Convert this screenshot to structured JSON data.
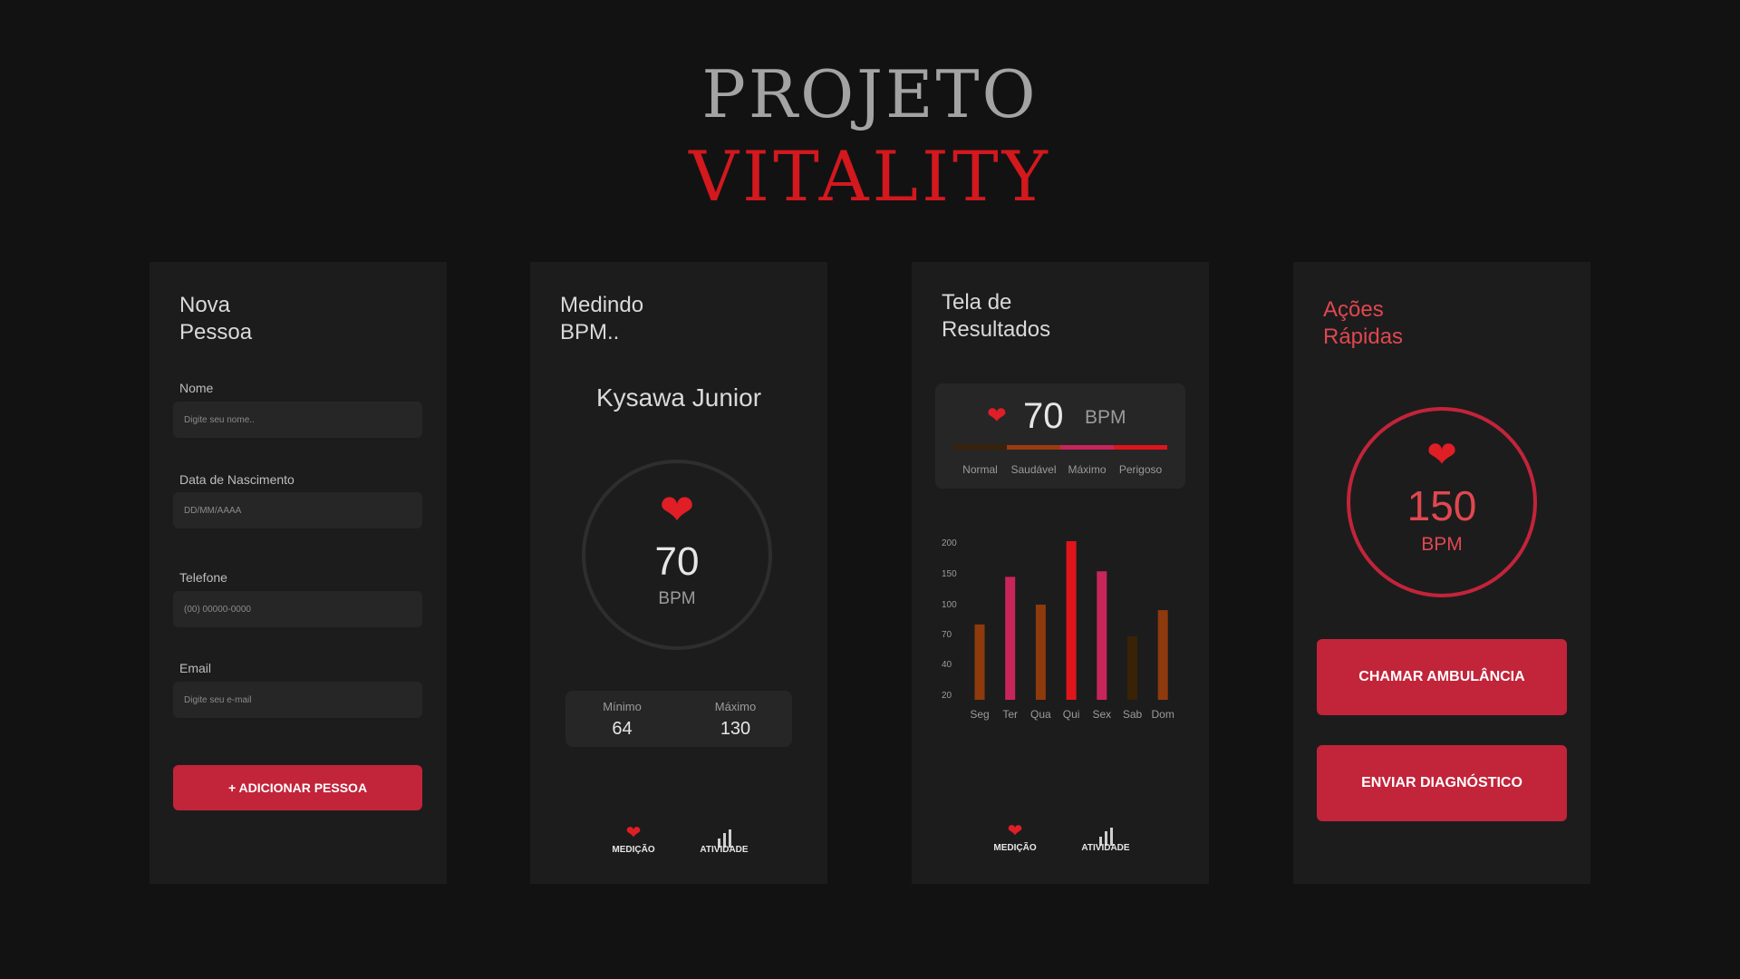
{
  "header": {
    "line1": "PROJETO",
    "line2": "VITALITY"
  },
  "colors": {
    "accent": "#c2243a",
    "heart": "#e01e26",
    "background": "#121213",
    "panel": "#1c1c1d"
  },
  "form_panel": {
    "title_line1": "Nova",
    "title_line2": "Pessoa",
    "fields": [
      {
        "label": "Nome",
        "placeholder": "Digite seu nome.."
      },
      {
        "label": "Data de Nascimento",
        "placeholder": "DD/MM/AAAA"
      },
      {
        "label": "Telefone",
        "placeholder": "(00) 00000-0000"
      },
      {
        "label": "Email",
        "placeholder": "Digite seu e-mail"
      }
    ],
    "submit_label": "+ ADICIONAR PESSOA"
  },
  "measure_panel": {
    "title_line1": "Medindo",
    "title_line2": "BPM..",
    "person": "Kysawa Junior",
    "heart_icon": "heart-icon",
    "bpm": "70",
    "unit": "BPM",
    "min_label": "Mínimo",
    "min_value": "64",
    "max_label": "Máximo",
    "max_value": "130"
  },
  "nav": [
    {
      "label": "MEDIÇÃO",
      "icon": "heart-icon"
    },
    {
      "label": "ATIVIDADE",
      "icon": "bar-chart-icon"
    }
  ],
  "results_panel": {
    "title_line1": "Tela de",
    "title_line2": "Resultados",
    "bpm": "70",
    "unit": "BPM",
    "scale": [
      {
        "label": "Normal",
        "color": "#3a2206"
      },
      {
        "label": "Saudável",
        "color": "#9c3a0e"
      },
      {
        "label": "Máximo",
        "color": "#c8255a"
      },
      {
        "label": "Perigoso",
        "color": "#e0151c"
      }
    ]
  },
  "chart_data": {
    "type": "bar",
    "categories": [
      "Seg",
      "Ter",
      "Qua",
      "Qui",
      "Sex",
      "Sab",
      "Dom"
    ],
    "values": [
      95,
      155,
      120,
      200,
      162,
      80,
      113
    ],
    "bar_colors": [
      "#8e3a0c",
      "#c8255a",
      "#8e3a0c",
      "#e0151c",
      "#c8255a",
      "#3a2206",
      "#8e3a0c"
    ],
    "yticks": [
      "20",
      "40",
      "70",
      "100",
      "150",
      "200"
    ],
    "ylim": [
      0,
      200
    ]
  },
  "actions_panel": {
    "title_line1": "Ações",
    "title_line2": "Rápidas",
    "bpm": "150",
    "unit": "BPM",
    "ambulance_label": "CHAMAR AMBULÂNCIA",
    "diagnosis_label": "ENVIAR DIAGNÓSTICO"
  }
}
